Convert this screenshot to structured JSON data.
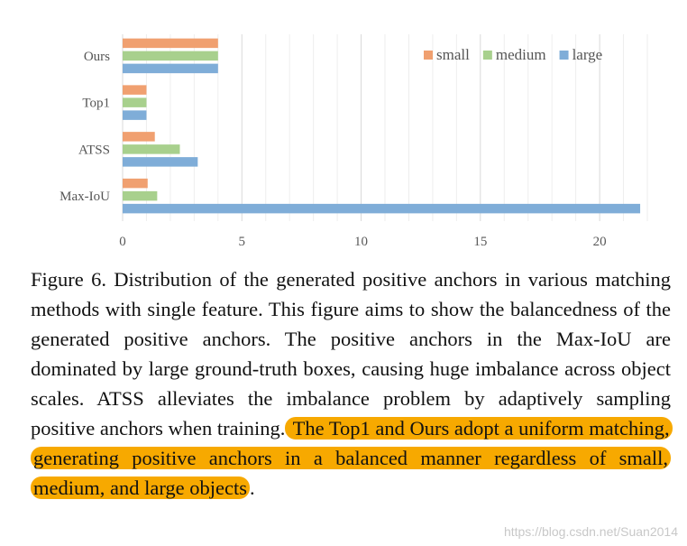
{
  "chart_data": {
    "type": "bar",
    "orientation": "horizontal",
    "categories": [
      "Ours",
      "Top1",
      "ATSS",
      "Max-IoU"
    ],
    "series": [
      {
        "name": "small",
        "color": "#f0a070",
        "values": [
          4.0,
          1.0,
          1.35,
          1.05
        ]
      },
      {
        "name": "medium",
        "color": "#a8d08d",
        "values": [
          4.0,
          1.0,
          2.4,
          1.45
        ]
      },
      {
        "name": "large",
        "color": "#7fadd8",
        "values": [
          4.0,
          1.0,
          3.15,
          21.7
        ]
      }
    ],
    "xlim": [
      0,
      22
    ],
    "xticks": [
      0,
      5,
      10,
      15,
      20
    ],
    "grid": true,
    "legend_position": "top-right"
  },
  "caption": {
    "text_plain": "Figure 6. Distribution of the generated positive anchors in various matching methods with single feature.  This figure aims to show the balancedness of the generated positive anchors. The positive anchors in the Max-IoU are dominated by large ground-truth boxes, causing huge imbalance across object scales.  ATSS alleviates the imbalance problem by adaptively sampling positive anchors when training.",
    "text_highlight": " The Top1 and Ours adopt a uniform matching, generating positive anchors in a balanced manner regardless of small, medium, and large objects",
    "text_end": "."
  },
  "watermark": "https://blog.csdn.net/Suan2014"
}
